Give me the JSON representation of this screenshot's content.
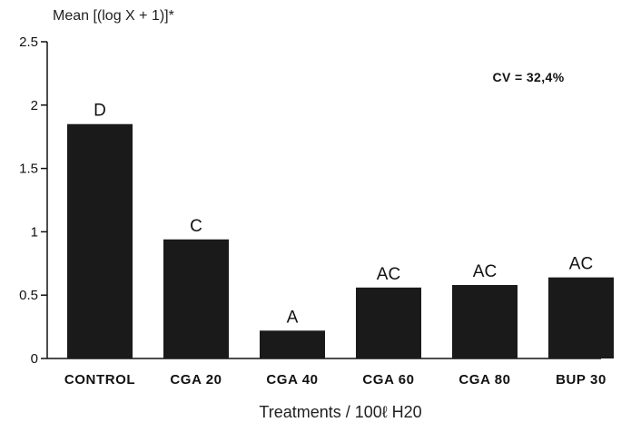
{
  "chart_data": {
    "type": "bar",
    "title": "",
    "ylabel": "Mean [(log X + 1)]*",
    "xlabel": "Treatments / 100ℓ H20",
    "categories": [
      "CONTROL",
      "CGA 20",
      "CGA 40",
      "CGA 60",
      "CGA 80",
      "BUP 30"
    ],
    "values": [
      1.85,
      0.94,
      0.22,
      0.56,
      0.58,
      0.64
    ],
    "bar_labels": [
      "D",
      "C",
      "A",
      "AC",
      "AC",
      "AC"
    ],
    "ylim": [
      0,
      2.5
    ],
    "yticks": [
      0,
      0.5,
      1,
      1.5,
      2,
      2.5
    ],
    "ytick_labels": [
      "0",
      "0.5",
      "1",
      "1.5",
      "2",
      "2.5"
    ],
    "annotation": "CV = 32,4%",
    "grid": false,
    "bar_color": "#1a1a1a",
    "axis_color": "#111111"
  }
}
